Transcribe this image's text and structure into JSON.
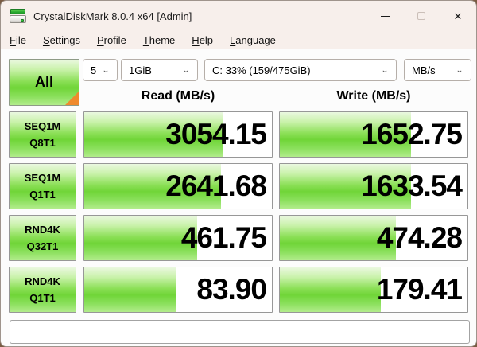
{
  "window": {
    "title": "CrystalDiskMark 8.0.4 x64 [Admin]"
  },
  "menu": {
    "items": [
      "File",
      "Settings",
      "Profile",
      "Theme",
      "Help",
      "Language"
    ]
  },
  "toolbar": {
    "all_button": "All",
    "test_count": "5",
    "test_size": "1GiB",
    "target_drive": "C: 33% (159/475GiB)",
    "unit": "MB/s"
  },
  "columns": {
    "read": "Read (MB/s)",
    "write": "Write (MB/s)"
  },
  "results": {
    "rows": [
      {
        "test": "SEQ1M",
        "queue_thread": "Q8T1",
        "read": {
          "value": "3054.15",
          "fill_pct": 74
        },
        "write": {
          "value": "1652.75",
          "fill_pct": 70
        }
      },
      {
        "test": "SEQ1M",
        "queue_thread": "Q1T1",
        "read": {
          "value": "2641.68",
          "fill_pct": 73
        },
        "write": {
          "value": "1633.54",
          "fill_pct": 70
        }
      },
      {
        "test": "RND4K",
        "queue_thread": "Q32T1",
        "read": {
          "value": "461.75",
          "fill_pct": 60
        },
        "write": {
          "value": "474.28",
          "fill_pct": 62
        }
      },
      {
        "test": "RND4K",
        "queue_thread": "Q1T1",
        "read": {
          "value": "83.90",
          "fill_pct": 49
        },
        "write": {
          "value": "179.41",
          "fill_pct": 54
        }
      }
    ]
  },
  "status_bar": {
    "text": ""
  },
  "colors": {
    "green_mid": "#70d538",
    "accent_orange": "#ef8a2d",
    "titlebar_bg": "#f7efeb",
    "client_bg": "#fcfcfc"
  }
}
